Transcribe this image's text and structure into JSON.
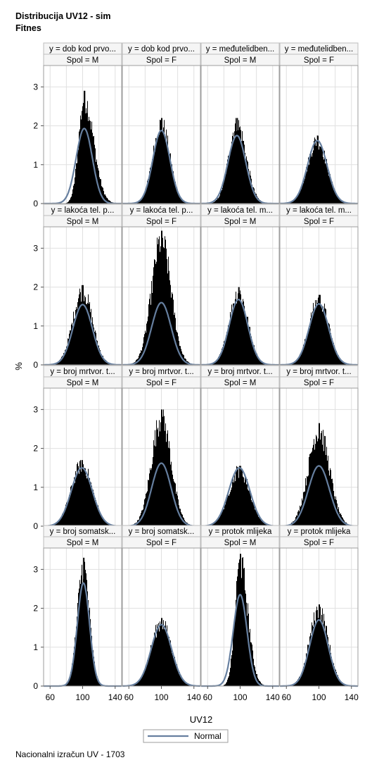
{
  "title": {
    "line1": "Distribucija UV12 - sim",
    "line2": "Fitnes"
  },
  "footnote": "Nacionalni izračun UV - 1703",
  "chart_data": {
    "type": "histogram-panel",
    "xlabel": "UV12",
    "ylabel": "%",
    "xticks": [
      60,
      100,
      140
    ],
    "xlim": [
      52,
      148
    ],
    "yticks": [
      0,
      1,
      2,
      3
    ],
    "ylim": [
      0,
      3.55
    ],
    "legend": {
      "label": "Normal",
      "placement": "bottom-center"
    },
    "colors": {
      "bars": "#000000",
      "normal_curve": "#667f9f",
      "grid": "#e0e0e0",
      "header": "#f5f5f5"
    },
    "rows": [
      {
        "panels": [
          {
            "y": "y = dob kod prvo...",
            "spol": "Spol = M",
            "mean": 102,
            "peak_hist": 2.9,
            "curve_peak": 1.93,
            "sd": 10,
            "skew": 0.45
          },
          {
            "y": "y = dob kod prvo...",
            "spol": "Spol = F",
            "mean": 100,
            "peak_hist": 2.2,
            "curve_peak": 1.88,
            "sd": 10.5,
            "skew": 0.0
          },
          {
            "y": "y = međutelidben...",
            "spol": "Spol = M",
            "mean": 96,
            "peak_hist": 2.2,
            "curve_peak": 1.75,
            "sd": 11,
            "skew": 0.1
          },
          {
            "y": "y = međutelidben...",
            "spol": "Spol = F",
            "mean": 98,
            "peak_hist": 1.75,
            "curve_peak": 1.62,
            "sd": 12,
            "skew": 0.0
          }
        ]
      },
      {
        "panels": [
          {
            "y": "y = lakoća tel. p...",
            "spol": "Spol = M",
            "mean": 100,
            "peak_hist": 2.05,
            "curve_peak": 1.55,
            "sd": 12,
            "skew": 0.0
          },
          {
            "y": "y = lakoća tel. p...",
            "spol": "Spol = F",
            "mean": 100,
            "peak_hist": 3.45,
            "curve_peak": 1.6,
            "sd": 12,
            "skew": 0.0
          },
          {
            "y": "y = lakoća tel. m...",
            "spol": "Spol = M",
            "mean": 98,
            "peak_hist": 2.0,
            "curve_peak": 1.68,
            "sd": 11.5,
            "skew": 0.0
          },
          {
            "y": "y = lakoća tel. m...",
            "spol": "Spol = F",
            "mean": 100,
            "peak_hist": 1.8,
            "curve_peak": 1.57,
            "sd": 12,
            "skew": 0.0
          }
        ]
      },
      {
        "panels": [
          {
            "y": "y = broj mrtvor. t...",
            "spol": "Spol = M",
            "mean": 99,
            "peak_hist": 1.7,
            "curve_peak": 1.5,
            "sd": 13,
            "skew": 0.0
          },
          {
            "y": "y = broj mrtvor. t...",
            "spol": "Spol = F",
            "mean": 100,
            "peak_hist": 3.0,
            "curve_peak": 1.62,
            "sd": 12,
            "skew": 0.0
          },
          {
            "y": "y = broj mrtvor. t...",
            "spol": "Spol = M",
            "mean": 99,
            "peak_hist": 1.55,
            "curve_peak": 1.5,
            "sd": 13,
            "skew": 0.0
          },
          {
            "y": "y = broj mrtvor. t...",
            "spol": "Spol = F",
            "mean": 100,
            "peak_hist": 2.65,
            "curve_peak": 1.55,
            "sd": 13,
            "skew": 0.0
          }
        ]
      },
      {
        "panels": [
          {
            "y": "y = broj somatsk...",
            "spol": "Spol = M",
            "mean": 101,
            "peak_hist": 3.3,
            "curve_peak": 2.65,
            "sd": 7.5,
            "skew": 0.0
          },
          {
            "y": "y = broj somatsk...",
            "spol": "Spol = F",
            "mean": 100,
            "peak_hist": 1.75,
            "curve_peak": 1.58,
            "sd": 12.5,
            "skew": 0.0
          },
          {
            "y": "y = protok mlijeka",
            "spol": "Spol = M",
            "mean": 100,
            "peak_hist": 3.4,
            "curve_peak": 2.35,
            "sd": 8.5,
            "skew": 0.35
          },
          {
            "y": "y = protok mlijeka",
            "spol": "Spol = F",
            "mean": 100,
            "peak_hist": 2.1,
            "curve_peak": 1.7,
            "sd": 11.5,
            "skew": 0.0
          }
        ]
      }
    ]
  }
}
